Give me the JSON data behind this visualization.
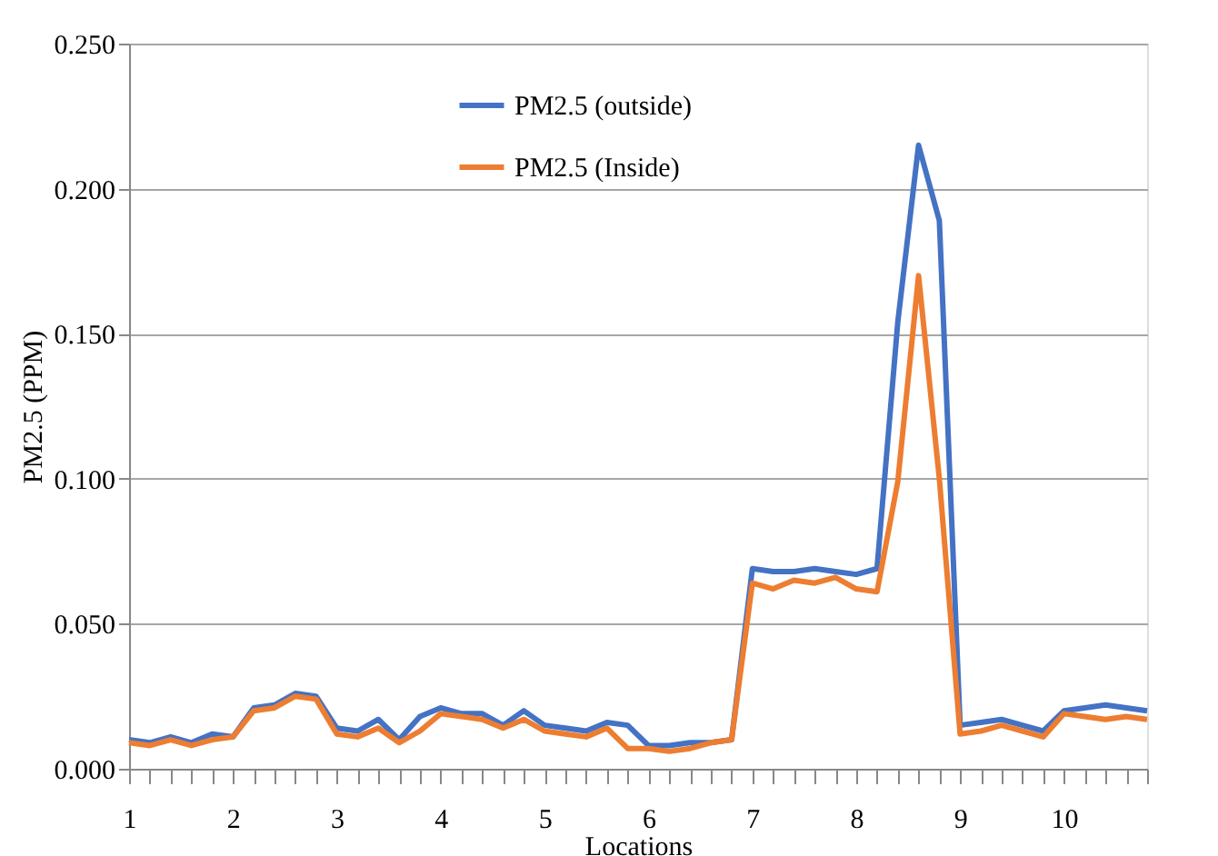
{
  "chart_data": {
    "type": "line",
    "xlabel": "Locations",
    "ylabel": "PM2.5 (PPM)",
    "categories": [
      "1",
      null,
      null,
      null,
      null,
      "2",
      null,
      null,
      null,
      null,
      "3",
      null,
      null,
      null,
      null,
      "4",
      null,
      null,
      null,
      null,
      "5",
      null,
      null,
      null,
      null,
      "6",
      null,
      null,
      null,
      null,
      "7",
      null,
      null,
      null,
      null,
      "8",
      null,
      null,
      null,
      null,
      "9",
      null,
      null,
      null,
      null,
      "10",
      null,
      null,
      null,
      null
    ],
    "series": [
      {
        "name": "PM2.5 (outside)",
        "color": "#4472c4",
        "values": [
          0.01,
          0.009,
          0.011,
          0.009,
          0.012,
          0.011,
          0.021,
          0.022,
          0.026,
          0.025,
          0.014,
          0.013,
          0.017,
          0.01,
          0.018,
          0.021,
          0.019,
          0.019,
          0.015,
          0.02,
          0.015,
          0.014,
          0.013,
          0.016,
          0.015,
          0.008,
          0.008,
          0.009,
          0.009,
          0.01,
          0.069,
          0.068,
          0.068,
          0.069,
          0.068,
          0.067,
          0.069,
          0.154,
          0.215,
          0.189,
          0.015,
          0.016,
          0.017,
          0.015,
          0.013,
          0.02,
          0.021,
          0.022,
          0.021,
          0.02
        ]
      },
      {
        "name": "PM2.5 (Inside)",
        "color": "#ed7d31",
        "values": [
          0.009,
          0.008,
          0.01,
          0.008,
          0.01,
          0.011,
          0.02,
          0.021,
          0.025,
          0.024,
          0.012,
          0.011,
          0.014,
          0.009,
          0.013,
          0.019,
          0.018,
          0.017,
          0.014,
          0.017,
          0.013,
          0.012,
          0.011,
          0.014,
          0.007,
          0.007,
          0.006,
          0.007,
          0.009,
          0.01,
          0.064,
          0.062,
          0.065,
          0.064,
          0.066,
          0.062,
          0.061,
          0.099,
          0.17,
          0.1,
          0.012,
          0.013,
          0.015,
          0.013,
          0.011,
          0.019,
          0.018,
          0.017,
          0.018,
          0.017
        ]
      }
    ],
    "ylim": [
      0,
      0.25
    ],
    "yticks": [
      {
        "value": 0,
        "label": "0.000"
      },
      {
        "value": 0.05,
        "label": "0.050"
      },
      {
        "value": 0.1,
        "label": "0.100"
      },
      {
        "value": 0.15,
        "label": "0.150"
      },
      {
        "value": 0.2,
        "label": "0.200"
      },
      {
        "value": 0.25,
        "label": "0.250"
      }
    ],
    "grid": "y",
    "legend": "top",
    "marker": "none",
    "line_style": "solid"
  }
}
